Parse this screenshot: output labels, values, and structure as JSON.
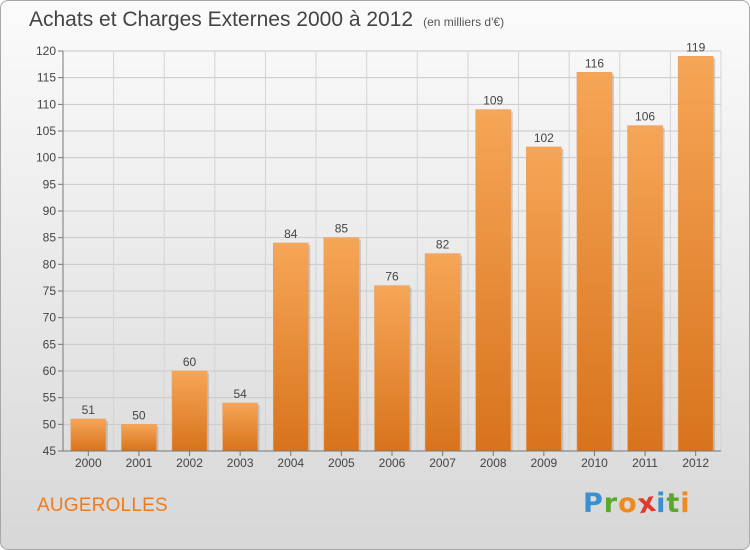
{
  "chart_data": {
    "type": "bar",
    "title": "Achats et Charges Externes 2000 à 2012",
    "unit_note": "(en milliers d'€)",
    "categories": [
      "2000",
      "2001",
      "2002",
      "2003",
      "2004",
      "2005",
      "2006",
      "2007",
      "2008",
      "2009",
      "2010",
      "2011",
      "2012"
    ],
    "values": [
      51,
      50,
      60,
      54,
      84,
      85,
      76,
      82,
      109,
      102,
      116,
      106,
      119
    ],
    "ylim": [
      45,
      120
    ],
    "yticks": [
      45,
      50,
      55,
      60,
      65,
      70,
      75,
      80,
      85,
      90,
      95,
      100,
      105,
      110,
      115,
      120
    ],
    "grid": true,
    "bar_color_top": "#f6a657",
    "bar_color_bottom": "#d8731c"
  },
  "place_name": "AUGEROLLES",
  "logo": {
    "letters": [
      "P",
      "r",
      "o",
      "x",
      "i",
      "t",
      "i"
    ],
    "colors": [
      "#3a8fd0",
      "#5aaa2a",
      "#f08a1c",
      "#e23a2a",
      "#3a8fd0",
      "#5aaa2a",
      "#f08a1c"
    ]
  }
}
